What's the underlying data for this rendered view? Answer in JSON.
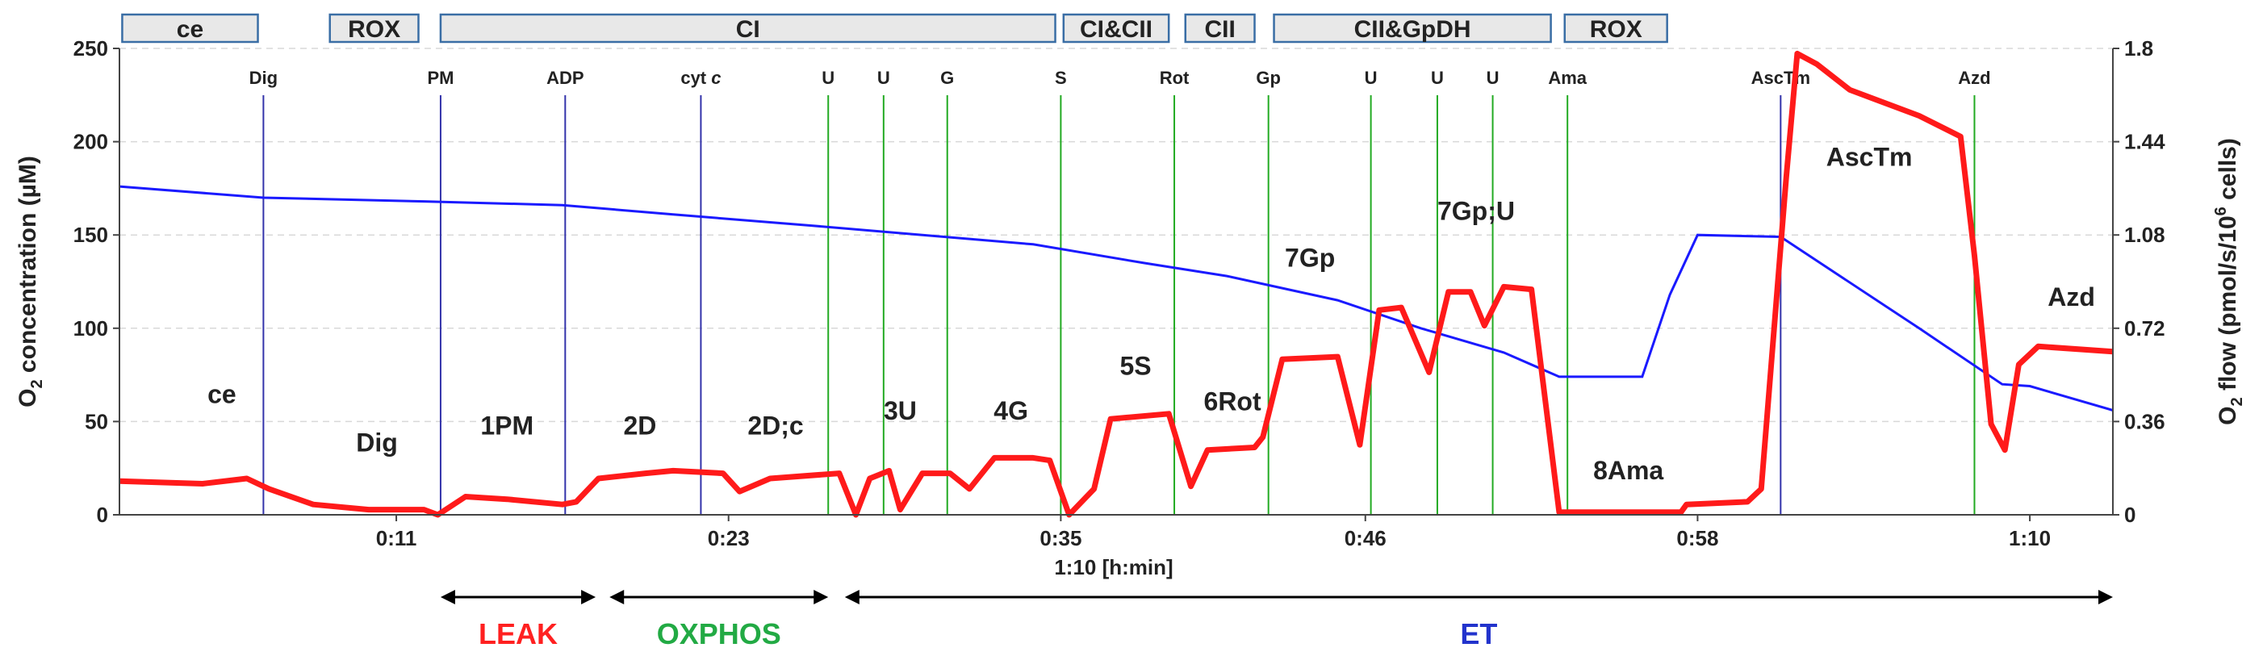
{
  "chart_data": {
    "type": "line",
    "xlabel": "1:10 [h:min]",
    "ylabel_left": "O2 concentration (µM)",
    "ylabel_right": "O2 flow (pmol/s/10^6 cells)",
    "ylim_left": [
      0,
      250
    ],
    "ylim_right": [
      0,
      1.8
    ],
    "x_range_min": [
      1,
      73
    ],
    "x_ticks": [
      {
        "value": 11,
        "label": "0:11"
      },
      {
        "value": 23,
        "label": "0:23"
      },
      {
        "value": 35,
        "label": "0:35"
      },
      {
        "value": 46,
        "label": "0:46"
      },
      {
        "value": 58,
        "label": "0:58"
      },
      {
        "value": 70,
        "label": "1:10"
      }
    ],
    "y_ticks_left": [
      0,
      50,
      100,
      150,
      200,
      250
    ],
    "y_ticks_right": [
      "0",
      "0.36",
      "0.72",
      "1.08",
      "1.44",
      "1.8"
    ],
    "grid": true,
    "colors": {
      "o2_concentration": "#1a1aff",
      "o2_flow": "#ff1a1a",
      "event_blue": "#3333aa",
      "event_green": "#22aa22",
      "segment_fill": "#e8e8e8",
      "segment_border": "#3a6ea5",
      "leak": "#ff2020",
      "oxphos": "#22aa44",
      "et": "#2233cc"
    },
    "series": [
      {
        "name": "O2 concentration",
        "axis": "left",
        "points": [
          [
            1,
            176
          ],
          [
            6.2,
            170
          ],
          [
            12,
            168
          ],
          [
            17,
            166
          ],
          [
            21,
            161
          ],
          [
            26,
            155
          ],
          [
            30,
            150
          ],
          [
            34,
            145
          ],
          [
            38,
            135
          ],
          [
            41,
            128
          ],
          [
            45,
            115
          ],
          [
            48,
            100
          ],
          [
            51,
            87
          ],
          [
            53,
            74
          ],
          [
            56,
            74
          ],
          [
            57,
            118
          ],
          [
            58,
            150
          ],
          [
            61,
            149
          ],
          [
            66,
            100
          ],
          [
            69,
            70
          ],
          [
            70,
            69
          ],
          [
            73,
            56
          ]
        ]
      },
      {
        "name": "O2 flow",
        "axis": "right",
        "points": [
          [
            1,
            0.13
          ],
          [
            4,
            0.12
          ],
          [
            5.6,
            0.14
          ],
          [
            6.4,
            0.1
          ],
          [
            8,
            0.04
          ],
          [
            10,
            0.02
          ],
          [
            12,
            0.02
          ],
          [
            12.5,
            0.0
          ],
          [
            13.5,
            0.07
          ],
          [
            15,
            0.06
          ],
          [
            17,
            0.04
          ],
          [
            17.5,
            0.05
          ],
          [
            18.3,
            0.14
          ],
          [
            20,
            0.16
          ],
          [
            21,
            0.17
          ],
          [
            22.8,
            0.16
          ],
          [
            23.4,
            0.09
          ],
          [
            24.5,
            0.14
          ],
          [
            27,
            0.16
          ],
          [
            27.6,
            0.0
          ],
          [
            28.1,
            0.14
          ],
          [
            28.8,
            0.17
          ],
          [
            29.2,
            0.02
          ],
          [
            30,
            0.16
          ],
          [
            31,
            0.16
          ],
          [
            31.7,
            0.1
          ],
          [
            32.6,
            0.22
          ],
          [
            34,
            0.22
          ],
          [
            34.6,
            0.21
          ],
          [
            35.3,
            0.0
          ],
          [
            36.2,
            0.1
          ],
          [
            36.8,
            0.37
          ],
          [
            38.9,
            0.39
          ],
          [
            39.7,
            0.11
          ],
          [
            40.3,
            0.25
          ],
          [
            42,
            0.26
          ],
          [
            42.3,
            0.3
          ],
          [
            43,
            0.6
          ],
          [
            45,
            0.61
          ],
          [
            45.8,
            0.27
          ],
          [
            46.5,
            0.79
          ],
          [
            47.3,
            0.8
          ],
          [
            48.3,
            0.55
          ],
          [
            49,
            0.86
          ],
          [
            49.8,
            0.86
          ],
          [
            50.3,
            0.73
          ],
          [
            51,
            0.88
          ],
          [
            52,
            0.87
          ],
          [
            53,
            0.01
          ],
          [
            56,
            0.01
          ],
          [
            57.4,
            0.01
          ],
          [
            57.6,
            0.04
          ],
          [
            59.8,
            0.05
          ],
          [
            60.3,
            0.1
          ],
          [
            61.2,
            1.3
          ],
          [
            61.6,
            1.78
          ],
          [
            62.3,
            1.74
          ],
          [
            63.5,
            1.64
          ],
          [
            66,
            1.54
          ],
          [
            67.5,
            1.46
          ],
          [
            68,
            1.0
          ],
          [
            68.6,
            0.35
          ],
          [
            69.1,
            0.25
          ],
          [
            69.6,
            0.58
          ],
          [
            70.3,
            0.65
          ],
          [
            73,
            0.63
          ]
        ]
      }
    ],
    "events": [
      {
        "label": "Dig",
        "x": 6.2,
        "color": "blue"
      },
      {
        "label": "PM",
        "x": 12.6,
        "color": "blue"
      },
      {
        "label": "ADP",
        "x": 17.1,
        "color": "blue"
      },
      {
        "label": "cyt c",
        "x": 22,
        "color": "blue",
        "italic_part": "c"
      },
      {
        "label": "U",
        "x": 26.6,
        "color": "green"
      },
      {
        "label": "U",
        "x": 28.6,
        "color": "green"
      },
      {
        "label": "G",
        "x": 30.9,
        "color": "green"
      },
      {
        "label": "S",
        "x": 35,
        "color": "green"
      },
      {
        "label": "Rot",
        "x": 39.1,
        "color": "green"
      },
      {
        "label": "Gp",
        "x": 42.5,
        "color": "green"
      },
      {
        "label": "U",
        "x": 46.2,
        "color": "green"
      },
      {
        "label": "U",
        "x": 48.6,
        "color": "green"
      },
      {
        "label": "U",
        "x": 50.6,
        "color": "green"
      },
      {
        "label": "Ama",
        "x": 53.3,
        "color": "green"
      },
      {
        "label": "AscTm",
        "x": 61,
        "color": "blue"
      },
      {
        "label": "Azd",
        "x": 68,
        "color": "green"
      }
    ],
    "state_labels": [
      {
        "text": "ce",
        "x": 4.7,
        "y": 60
      },
      {
        "text": "Dig",
        "x": 10.3,
        "y": 34
      },
      {
        "text": "1PM",
        "x": 15,
        "y": 43
      },
      {
        "text": "2D",
        "x": 19.8,
        "y": 43
      },
      {
        "text": "2D;c",
        "x": 24.7,
        "y": 43
      },
      {
        "text": "3U",
        "x": 29.2,
        "y": 51
      },
      {
        "text": "4G",
        "x": 33.2,
        "y": 51
      },
      {
        "text": "5S",
        "x": 37.7,
        "y": 75
      },
      {
        "text": "6Rot",
        "x": 41.2,
        "y": 56
      },
      {
        "text": "7Gp",
        "x": 44,
        "y": 133
      },
      {
        "text": "7Gp;U",
        "x": 50,
        "y": 158
      },
      {
        "text": "8Ama",
        "x": 55.5,
        "y": 19
      },
      {
        "text": "AscTm",
        "x": 64.2,
        "y": 187
      },
      {
        "text": "Azd",
        "x": 71.5,
        "y": 112
      }
    ],
    "segments": [
      {
        "label": "ce",
        "x0": 1.1,
        "x1": 6.0
      },
      {
        "label": "ROX",
        "x0": 8.6,
        "x1": 11.8
      },
      {
        "label": "CI",
        "x0": 12.6,
        "x1": 34.8
      },
      {
        "label": "CI&CII",
        "x0": 35.1,
        "x1": 38.9
      },
      {
        "label": "CII",
        "x0": 39.5,
        "x1": 42.0
      },
      {
        "label": "CII&GpDH",
        "x0": 42.7,
        "x1": 52.7
      },
      {
        "label": "ROX",
        "x0": 53.2,
        "x1": 56.9
      }
    ],
    "phases": [
      {
        "label": "LEAK",
        "x0": 12.6,
        "x1": 18.2,
        "color": "leak"
      },
      {
        "label": "OXPHOS",
        "x0": 18.7,
        "x1": 26.6,
        "color": "oxphos"
      },
      {
        "label": "ET",
        "x0": 27.2,
        "x1": 73,
        "color": "et"
      }
    ]
  }
}
